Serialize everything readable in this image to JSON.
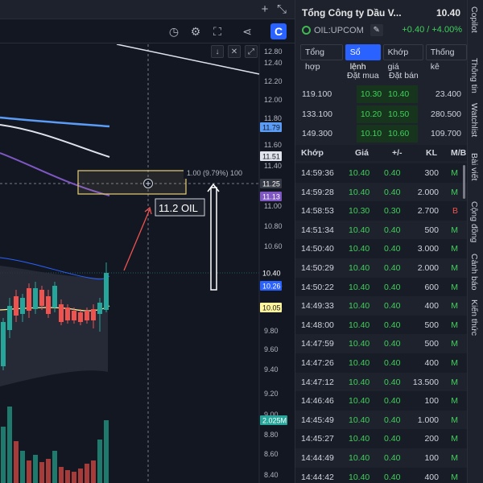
{
  "chart": {
    "price_axis_labels": [
      "12.80",
      "12.40",
      "12.20",
      "12.00",
      "11.80",
      "11.60",
      "11.40",
      "11.00",
      "10.80",
      "10.60",
      "10.20",
      "10.00",
      "9.80",
      "9.60",
      "9.40",
      "9.20",
      "9.00",
      "8.80",
      "8.60",
      "8.40"
    ],
    "price_badges": [
      {
        "text": "11.79",
        "bg": "#5b9cf6",
        "color": "#131722"
      },
      {
        "text": "11.51",
        "bg": "#e0e3eb",
        "color": "#131722"
      },
      {
        "text": "11.25",
        "bg": "#363a45",
        "color": "#ffffff"
      },
      {
        "text": "11.13",
        "bg": "#7e57c2",
        "color": "#ffffff"
      },
      {
        "text": "10.40",
        "bg": "#131722",
        "color": "#ffffff"
      },
      {
        "text": "10.26",
        "bg": "#2962ff",
        "color": "#ffffff"
      },
      {
        "text": "10.05",
        "bg": "#fff59d",
        "color": "#131722"
      },
      {
        "text": "2.025M",
        "bg": "#26a69a",
        "color": "#ffffff"
      }
    ],
    "measure_label": "1.00 (9.79%) 100",
    "annotation_text": "11.2 OIL",
    "toolbar_icons": [
      "down-arrow-icon",
      "close-x-icon",
      "expand-icon",
      "replay-icon",
      "gear-icon",
      "fullscreen-icon",
      "share-icon",
      "brand-logo-icon"
    ],
    "top_icons": [
      "plus-icon",
      "collapse-icon"
    ],
    "colors": {
      "up": "#26a69a",
      "down": "#ef5350",
      "bg": "#131722"
    }
  },
  "panel": {
    "stock_name": "Tổng Công ty Dầu V...",
    "stock_price": "10.40",
    "ticker": "OIL:UPCOM",
    "change": "+0.40 / +4.00%",
    "tabs": [
      {
        "label": "Tổng hợp",
        "active": false
      },
      {
        "label": "Sổ lệnh",
        "active": true
      },
      {
        "label": "Khớp giá",
        "active": false
      },
      {
        "label": "Thống kê",
        "active": false
      }
    ],
    "orderbook": {
      "header_bid": "Đặt mua",
      "header_ask": "Đặt bán",
      "rows": [
        {
          "bid_vol": "119.100",
          "bid": "10.30",
          "ask": "10.40",
          "ask_vol": "23.400"
        },
        {
          "bid_vol": "133.100",
          "bid": "10.20",
          "ask": "10.50",
          "ask_vol": "280.500"
        },
        {
          "bid_vol": "149.300",
          "bid": "10.10",
          "ask": "10.60",
          "ask_vol": "109.700"
        }
      ]
    },
    "trades_header": {
      "time": "Khớp",
      "price": "Giá",
      "change": "+/-",
      "vol": "KL",
      "side": "M/B"
    },
    "trades": [
      {
        "time": "14:59:36",
        "price": "10.40",
        "change": "0.40",
        "vol": "300",
        "side": "M"
      },
      {
        "time": "14:59:28",
        "price": "10.40",
        "change": "0.40",
        "vol": "2.000",
        "side": "M"
      },
      {
        "time": "14:58:53",
        "price": "10.30",
        "change": "0.30",
        "vol": "2.700",
        "side": "B"
      },
      {
        "time": "14:51:34",
        "price": "10.40",
        "change": "0.40",
        "vol": "500",
        "side": "M"
      },
      {
        "time": "14:50:40",
        "price": "10.40",
        "change": "0.40",
        "vol": "3.000",
        "side": "M"
      },
      {
        "time": "14:50:29",
        "price": "10.40",
        "change": "0.40",
        "vol": "2.000",
        "side": "M"
      },
      {
        "time": "14:50:22",
        "price": "10.40",
        "change": "0.40",
        "vol": "600",
        "side": "M"
      },
      {
        "time": "14:49:33",
        "price": "10.40",
        "change": "0.40",
        "vol": "400",
        "side": "M"
      },
      {
        "time": "14:48:00",
        "price": "10.40",
        "change": "0.40",
        "vol": "500",
        "side": "M"
      },
      {
        "time": "14:47:59",
        "price": "10.40",
        "change": "0.40",
        "vol": "500",
        "side": "M"
      },
      {
        "time": "14:47:26",
        "price": "10.40",
        "change": "0.40",
        "vol": "400",
        "side": "M"
      },
      {
        "time": "14:47:12",
        "price": "10.40",
        "change": "0.40",
        "vol": "13.500",
        "side": "M"
      },
      {
        "time": "14:46:46",
        "price": "10.40",
        "change": "0.40",
        "vol": "100",
        "side": "M"
      },
      {
        "time": "14:45:49",
        "price": "10.40",
        "change": "0.40",
        "vol": "1.000",
        "side": "M"
      },
      {
        "time": "14:45:27",
        "price": "10.40",
        "change": "0.40",
        "vol": "200",
        "side": "M"
      },
      {
        "time": "14:44:49",
        "price": "10.40",
        "change": "0.40",
        "vol": "100",
        "side": "M"
      },
      {
        "time": "14:44:42",
        "price": "10.40",
        "change": "0.40",
        "vol": "400",
        "side": "M"
      }
    ]
  },
  "sidebar": {
    "items": [
      "Copilot",
      "Thông tin",
      "Watchlist",
      "Bài viết",
      "Cộng đồng",
      "Cảnh báo",
      "Kiến thức"
    ]
  }
}
